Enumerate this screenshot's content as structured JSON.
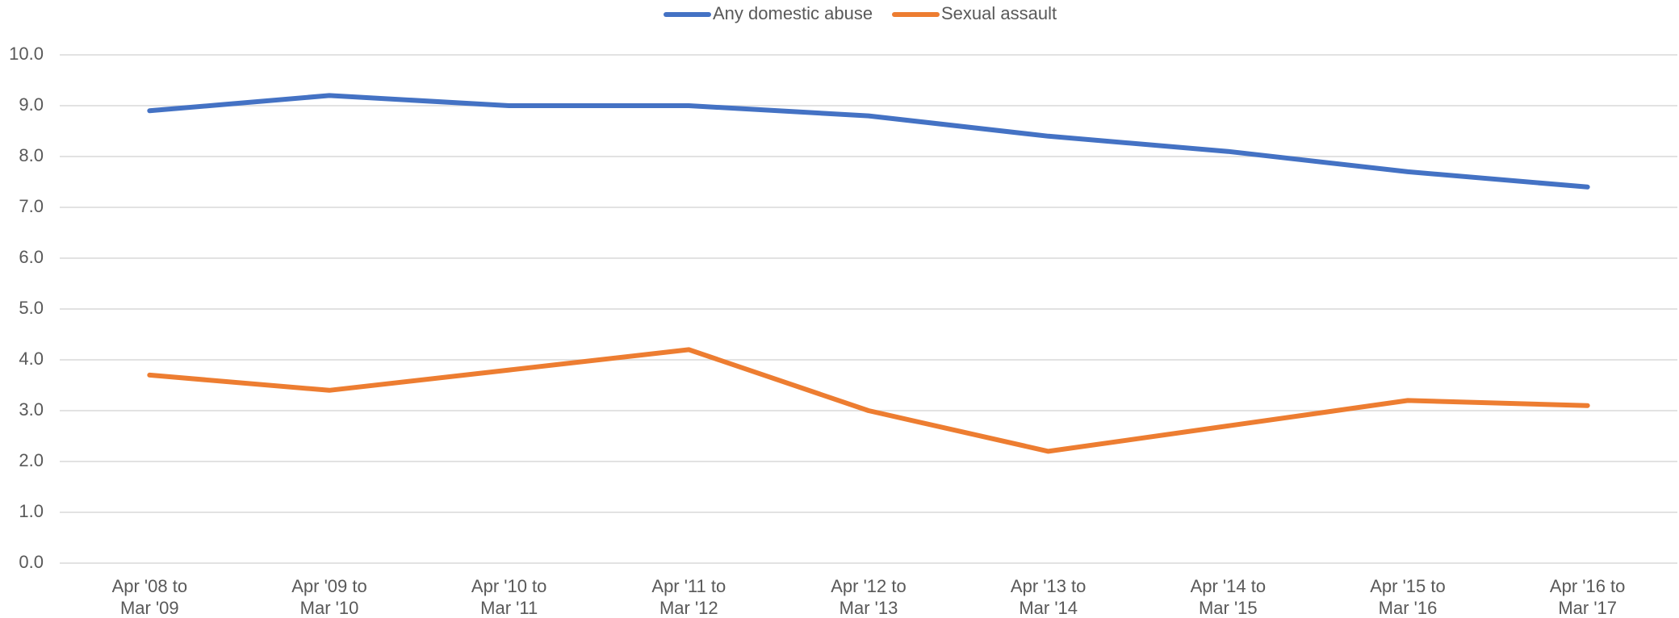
{
  "chart_data": {
    "type": "line",
    "categories": [
      [
        "Apr '08 to",
        "Mar '09"
      ],
      [
        "Apr '09 to",
        "Mar '10"
      ],
      [
        "Apr '10 to",
        "Mar '11"
      ],
      [
        "Apr '11 to",
        "Mar '12"
      ],
      [
        "Apr '12 to",
        "Mar '13"
      ],
      [
        "Apr '13 to",
        "Mar '14"
      ],
      [
        "Apr '14 to",
        "Mar '15"
      ],
      [
        "Apr '15 to",
        "Mar '16"
      ],
      [
        "Apr '16 to",
        "Mar '17"
      ]
    ],
    "series": [
      {
        "name": "Any domestic abuse",
        "color": "#4472c4",
        "values": [
          8.9,
          9.2,
          9.0,
          9.0,
          8.8,
          8.4,
          8.1,
          7.7,
          7.4
        ]
      },
      {
        "name": "Sexual assault",
        "color": "#ed7d31",
        "values": [
          3.7,
          3.4,
          3.8,
          4.2,
          3.0,
          2.2,
          2.7,
          3.2,
          3.1
        ]
      }
    ],
    "ylim": [
      0,
      10
    ],
    "yticks": [
      {
        "value": 0,
        "label": "0.0"
      },
      {
        "value": 1,
        "label": "1.0"
      },
      {
        "value": 2,
        "label": "2.0"
      },
      {
        "value": 3,
        "label": "3.0"
      },
      {
        "value": 4,
        "label": "4.0"
      },
      {
        "value": 5,
        "label": "5.0"
      },
      {
        "value": 6,
        "label": "6.0"
      },
      {
        "value": 7,
        "label": "7.0"
      },
      {
        "value": 8,
        "label": "8.0"
      },
      {
        "value": 9,
        "label": "9.0"
      },
      {
        "value": 10,
        "label": "10.0"
      }
    ],
    "grid": true,
    "legend": "top"
  }
}
